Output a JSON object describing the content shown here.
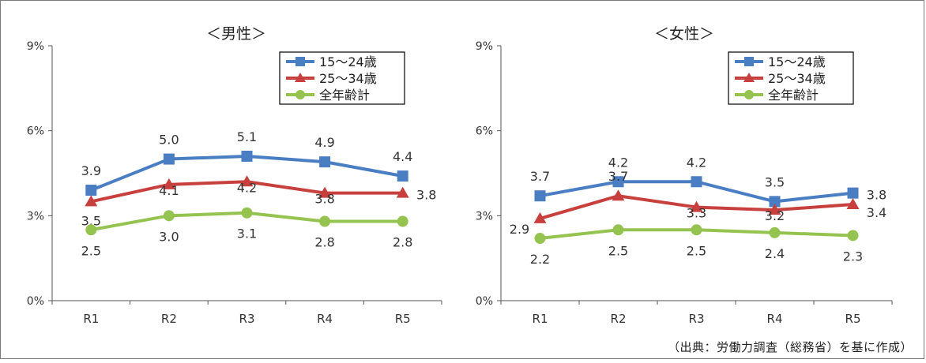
{
  "source_note": "（出典：労働力調査（総務省）を基に作成）",
  "colors": {
    "s1": "#4a7ec3",
    "s2": "#c8403d",
    "s3": "#95c34f",
    "axis": "#555555",
    "legend_border": "#000000"
  },
  "chart_data": [
    {
      "type": "line",
      "title": "＜男性＞",
      "categories": [
        "R1",
        "R2",
        "R3",
        "R4",
        "R5"
      ],
      "ylim": [
        0,
        9
      ],
      "yticks": [
        "0%",
        "3%",
        "6%",
        "9%"
      ],
      "legend_position": "top-right",
      "series": [
        {
          "name": "15～24歳",
          "marker": "square",
          "values": [
            3.9,
            5.0,
            5.1,
            4.9,
            4.4
          ],
          "labels": [
            "3.9",
            "5.0",
            "5.1",
            "4.9",
            "4.4"
          ]
        },
        {
          "name": "25～34歳",
          "marker": "triangle",
          "values": [
            3.5,
            4.1,
            4.2,
            3.8,
            3.8
          ],
          "labels": [
            "3.5",
            "4.1",
            "4.2",
            "3.8",
            "3.8"
          ]
        },
        {
          "name": "全年齢計",
          "marker": "circle",
          "values": [
            2.5,
            3.0,
            3.1,
            2.8,
            2.8
          ],
          "labels": [
            "2.5",
            "3.0",
            "3.1",
            "2.8",
            "2.8"
          ]
        }
      ]
    },
    {
      "type": "line",
      "title": "＜女性＞",
      "categories": [
        "R1",
        "R2",
        "R3",
        "R4",
        "R5"
      ],
      "ylim": [
        0,
        9
      ],
      "yticks": [
        "0%",
        "3%",
        "6%",
        "9%"
      ],
      "legend_position": "top-right",
      "series": [
        {
          "name": "15～24歳",
          "marker": "square",
          "values": [
            3.7,
            4.2,
            4.2,
            3.5,
            3.8
          ],
          "labels": [
            "3.7",
            "4.2",
            "4.2",
            "3.5",
            "3.8"
          ]
        },
        {
          "name": "25～34歳",
          "marker": "triangle",
          "values": [
            2.9,
            3.7,
            3.3,
            3.2,
            3.4
          ],
          "labels": [
            "2.9",
            "3.7",
            "3.3",
            "3.2",
            "3.4"
          ]
        },
        {
          "name": "全年齢計",
          "marker": "circle",
          "values": [
            2.2,
            2.5,
            2.5,
            2.4,
            2.3
          ],
          "labels": [
            "2.2",
            "2.5",
            "2.5",
            "2.4",
            "2.3"
          ]
        }
      ]
    }
  ]
}
